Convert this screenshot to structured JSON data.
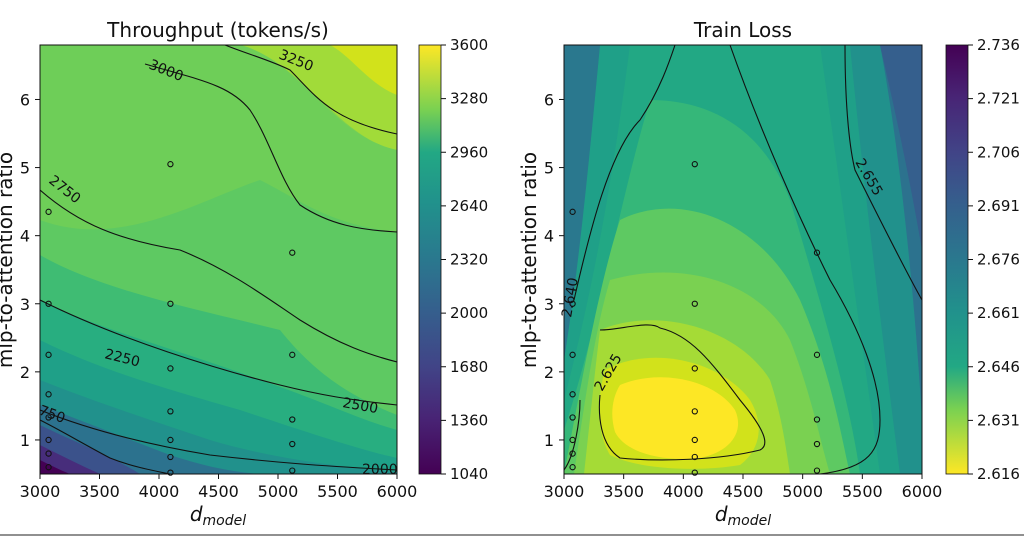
{
  "chart_data": [
    {
      "type": "contour",
      "title": "Throughput (tokens/s)",
      "xlabel": "d",
      "xlabel_sub": "model",
      "ylabel": "mlp-to-attention ratio",
      "xlim": [
        3000,
        6000
      ],
      "ylim": [
        0.5,
        6.8
      ],
      "x_ticks": [
        3000,
        3500,
        4000,
        4500,
        5000,
        5500,
        6000
      ],
      "y_ticks": [
        1,
        2,
        3,
        4,
        5,
        6
      ],
      "colormap": "viridis",
      "colorbar_ticks": [
        "1040",
        "1360",
        "1680",
        "2000",
        "2320",
        "2640",
        "2960",
        "3280",
        "3600"
      ],
      "colorbar_range": [
        1040,
        3600
      ],
      "contour_labels": [
        "3000",
        "3250",
        "2750",
        "2250",
        "750",
        "2500",
        "2000"
      ],
      "sample_points": [
        {
          "x": 3072,
          "y": 4.35
        },
        {
          "x": 3072,
          "y": 3.0
        },
        {
          "x": 3072,
          "y": 2.25
        },
        {
          "x": 3072,
          "y": 1.67
        },
        {
          "x": 3072,
          "y": 1.33
        },
        {
          "x": 3072,
          "y": 1.0
        },
        {
          "x": 3072,
          "y": 0.8
        },
        {
          "x": 3072,
          "y": 0.6
        },
        {
          "x": 4096,
          "y": 5.05
        },
        {
          "x": 4096,
          "y": 3.0
        },
        {
          "x": 4096,
          "y": 2.05
        },
        {
          "x": 4096,
          "y": 1.42
        },
        {
          "x": 4096,
          "y": 1.0
        },
        {
          "x": 4096,
          "y": 0.75
        },
        {
          "x": 4096,
          "y": 0.52
        },
        {
          "x": 5120,
          "y": 3.75
        },
        {
          "x": 5120,
          "y": 2.25
        },
        {
          "x": 5120,
          "y": 1.3
        },
        {
          "x": 5120,
          "y": 0.94
        },
        {
          "x": 5120,
          "y": 0.55
        }
      ]
    },
    {
      "type": "contour",
      "title": "Train Loss",
      "xlabel": "d",
      "xlabel_sub": "model",
      "ylabel": "mlp-to-attention ratio",
      "xlim": [
        3000,
        6000
      ],
      "ylim": [
        0.5,
        6.8
      ],
      "x_ticks": [
        3000,
        3500,
        4000,
        4500,
        5000,
        5500,
        6000
      ],
      "y_ticks": [
        1,
        2,
        3,
        4,
        5,
        6
      ],
      "colormap": "viridis_r",
      "colorbar_ticks": [
        "2.616",
        "2.631",
        "2.646",
        "2.661",
        "2.676",
        "2.691",
        "2.706",
        "2.721",
        "2.736"
      ],
      "colorbar_range": [
        2.616,
        2.736
      ],
      "contour_labels": [
        "2.655",
        "2.625",
        "2.640"
      ],
      "sample_points": [
        {
          "x": 3072,
          "y": 4.35
        },
        {
          "x": 3072,
          "y": 3.0
        },
        {
          "x": 3072,
          "y": 2.25
        },
        {
          "x": 3072,
          "y": 1.67
        },
        {
          "x": 3072,
          "y": 1.33
        },
        {
          "x": 3072,
          "y": 1.0
        },
        {
          "x": 3072,
          "y": 0.8
        },
        {
          "x": 3072,
          "y": 0.6
        },
        {
          "x": 4096,
          "y": 5.05
        },
        {
          "x": 4096,
          "y": 3.0
        },
        {
          "x": 4096,
          "y": 2.05
        },
        {
          "x": 4096,
          "y": 1.42
        },
        {
          "x": 4096,
          "y": 1.0
        },
        {
          "x": 4096,
          "y": 0.75
        },
        {
          "x": 4096,
          "y": 0.52
        },
        {
          "x": 5120,
          "y": 3.75
        },
        {
          "x": 5120,
          "y": 2.25
        },
        {
          "x": 5120,
          "y": 1.3
        },
        {
          "x": 5120,
          "y": 0.94
        },
        {
          "x": 5120,
          "y": 0.55
        }
      ]
    }
  ]
}
